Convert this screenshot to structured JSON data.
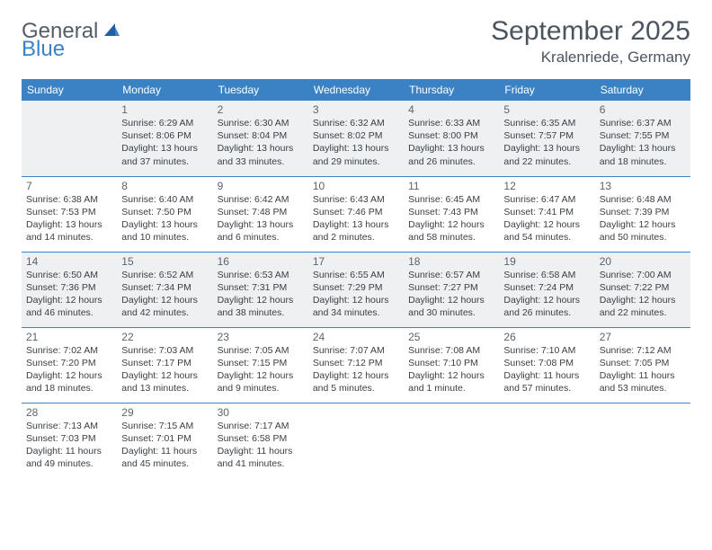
{
  "brand": {
    "general": "General",
    "blue": "Blue"
  },
  "title": "September 2025",
  "location": "Kralenriede, Germany",
  "colors": {
    "header_bg": "#3b82c4",
    "header_text": "#ffffff",
    "border": "#3b82c4",
    "shade_bg": "#eef0f2",
    "text": "#3a3f45",
    "title_text": "#4a5560"
  },
  "weekdays": [
    "Sunday",
    "Monday",
    "Tuesday",
    "Wednesday",
    "Thursday",
    "Friday",
    "Saturday"
  ],
  "weeks": [
    [
      null,
      {
        "n": "1",
        "sr": "Sunrise: 6:29 AM",
        "ss": "Sunset: 8:06 PM",
        "d1": "Daylight: 13 hours",
        "d2": "and 37 minutes."
      },
      {
        "n": "2",
        "sr": "Sunrise: 6:30 AM",
        "ss": "Sunset: 8:04 PM",
        "d1": "Daylight: 13 hours",
        "d2": "and 33 minutes."
      },
      {
        "n": "3",
        "sr": "Sunrise: 6:32 AM",
        "ss": "Sunset: 8:02 PM",
        "d1": "Daylight: 13 hours",
        "d2": "and 29 minutes."
      },
      {
        "n": "4",
        "sr": "Sunrise: 6:33 AM",
        "ss": "Sunset: 8:00 PM",
        "d1": "Daylight: 13 hours",
        "d2": "and 26 minutes."
      },
      {
        "n": "5",
        "sr": "Sunrise: 6:35 AM",
        "ss": "Sunset: 7:57 PM",
        "d1": "Daylight: 13 hours",
        "d2": "and 22 minutes."
      },
      {
        "n": "6",
        "sr": "Sunrise: 6:37 AM",
        "ss": "Sunset: 7:55 PM",
        "d1": "Daylight: 13 hours",
        "d2": "and 18 minutes."
      }
    ],
    [
      {
        "n": "7",
        "sr": "Sunrise: 6:38 AM",
        "ss": "Sunset: 7:53 PM",
        "d1": "Daylight: 13 hours",
        "d2": "and 14 minutes."
      },
      {
        "n": "8",
        "sr": "Sunrise: 6:40 AM",
        "ss": "Sunset: 7:50 PM",
        "d1": "Daylight: 13 hours",
        "d2": "and 10 minutes."
      },
      {
        "n": "9",
        "sr": "Sunrise: 6:42 AM",
        "ss": "Sunset: 7:48 PM",
        "d1": "Daylight: 13 hours",
        "d2": "and 6 minutes."
      },
      {
        "n": "10",
        "sr": "Sunrise: 6:43 AM",
        "ss": "Sunset: 7:46 PM",
        "d1": "Daylight: 13 hours",
        "d2": "and 2 minutes."
      },
      {
        "n": "11",
        "sr": "Sunrise: 6:45 AM",
        "ss": "Sunset: 7:43 PM",
        "d1": "Daylight: 12 hours",
        "d2": "and 58 minutes."
      },
      {
        "n": "12",
        "sr": "Sunrise: 6:47 AM",
        "ss": "Sunset: 7:41 PM",
        "d1": "Daylight: 12 hours",
        "d2": "and 54 minutes."
      },
      {
        "n": "13",
        "sr": "Sunrise: 6:48 AM",
        "ss": "Sunset: 7:39 PM",
        "d1": "Daylight: 12 hours",
        "d2": "and 50 minutes."
      }
    ],
    [
      {
        "n": "14",
        "sr": "Sunrise: 6:50 AM",
        "ss": "Sunset: 7:36 PM",
        "d1": "Daylight: 12 hours",
        "d2": "and 46 minutes."
      },
      {
        "n": "15",
        "sr": "Sunrise: 6:52 AM",
        "ss": "Sunset: 7:34 PM",
        "d1": "Daylight: 12 hours",
        "d2": "and 42 minutes."
      },
      {
        "n": "16",
        "sr": "Sunrise: 6:53 AM",
        "ss": "Sunset: 7:31 PM",
        "d1": "Daylight: 12 hours",
        "d2": "and 38 minutes."
      },
      {
        "n": "17",
        "sr": "Sunrise: 6:55 AM",
        "ss": "Sunset: 7:29 PM",
        "d1": "Daylight: 12 hours",
        "d2": "and 34 minutes."
      },
      {
        "n": "18",
        "sr": "Sunrise: 6:57 AM",
        "ss": "Sunset: 7:27 PM",
        "d1": "Daylight: 12 hours",
        "d2": "and 30 minutes."
      },
      {
        "n": "19",
        "sr": "Sunrise: 6:58 AM",
        "ss": "Sunset: 7:24 PM",
        "d1": "Daylight: 12 hours",
        "d2": "and 26 minutes."
      },
      {
        "n": "20",
        "sr": "Sunrise: 7:00 AM",
        "ss": "Sunset: 7:22 PM",
        "d1": "Daylight: 12 hours",
        "d2": "and 22 minutes."
      }
    ],
    [
      {
        "n": "21",
        "sr": "Sunrise: 7:02 AM",
        "ss": "Sunset: 7:20 PM",
        "d1": "Daylight: 12 hours",
        "d2": "and 18 minutes."
      },
      {
        "n": "22",
        "sr": "Sunrise: 7:03 AM",
        "ss": "Sunset: 7:17 PM",
        "d1": "Daylight: 12 hours",
        "d2": "and 13 minutes."
      },
      {
        "n": "23",
        "sr": "Sunrise: 7:05 AM",
        "ss": "Sunset: 7:15 PM",
        "d1": "Daylight: 12 hours",
        "d2": "and 9 minutes."
      },
      {
        "n": "24",
        "sr": "Sunrise: 7:07 AM",
        "ss": "Sunset: 7:12 PM",
        "d1": "Daylight: 12 hours",
        "d2": "and 5 minutes."
      },
      {
        "n": "25",
        "sr": "Sunrise: 7:08 AM",
        "ss": "Sunset: 7:10 PM",
        "d1": "Daylight: 12 hours",
        "d2": "and 1 minute."
      },
      {
        "n": "26",
        "sr": "Sunrise: 7:10 AM",
        "ss": "Sunset: 7:08 PM",
        "d1": "Daylight: 11 hours",
        "d2": "and 57 minutes."
      },
      {
        "n": "27",
        "sr": "Sunrise: 7:12 AM",
        "ss": "Sunset: 7:05 PM",
        "d1": "Daylight: 11 hours",
        "d2": "and 53 minutes."
      }
    ],
    [
      {
        "n": "28",
        "sr": "Sunrise: 7:13 AM",
        "ss": "Sunset: 7:03 PM",
        "d1": "Daylight: 11 hours",
        "d2": "and 49 minutes."
      },
      {
        "n": "29",
        "sr": "Sunrise: 7:15 AM",
        "ss": "Sunset: 7:01 PM",
        "d1": "Daylight: 11 hours",
        "d2": "and 45 minutes."
      },
      {
        "n": "30",
        "sr": "Sunrise: 7:17 AM",
        "ss": "Sunset: 6:58 PM",
        "d1": "Daylight: 11 hours",
        "d2": "and 41 minutes."
      },
      null,
      null,
      null,
      null
    ]
  ]
}
